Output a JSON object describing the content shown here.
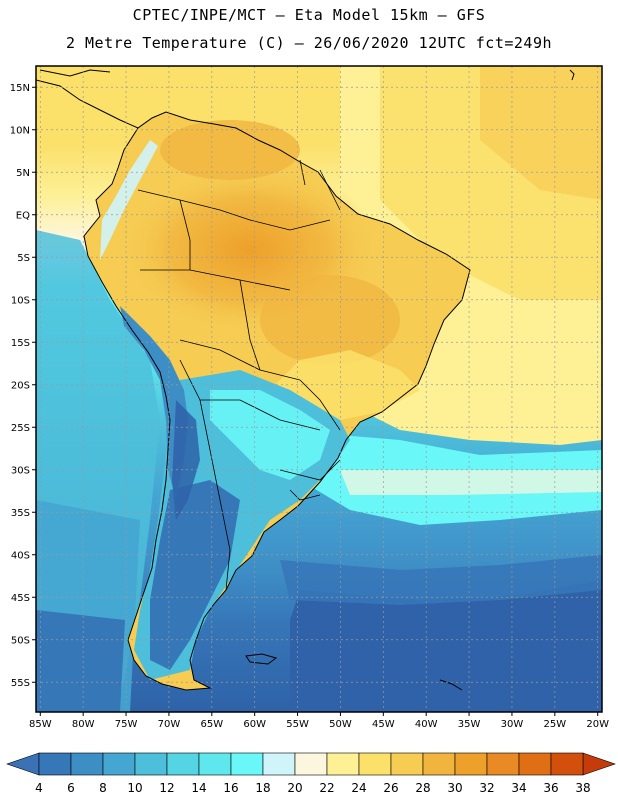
{
  "header": {
    "line1": "CPTEC/INPE/MCT –  Eta Model 15km – GFS",
    "line2": "2 Metre Temperature (C) – 26/06/2020 12UTC fct=249h"
  },
  "map": {
    "lon_range": [
      -85.5,
      -19.5
    ],
    "lat_range": [
      -58.5,
      17.5
    ],
    "lat_labels": [
      {
        "lat": 15,
        "label": "15N"
      },
      {
        "lat": 10,
        "label": "10N"
      },
      {
        "lat": 5,
        "label": "5N"
      },
      {
        "lat": 0,
        "label": "EQ"
      },
      {
        "lat": -5,
        "label": "5S"
      },
      {
        "lat": -10,
        "label": "10S"
      },
      {
        "lat": -15,
        "label": "15S"
      },
      {
        "lat": -20,
        "label": "20S"
      },
      {
        "lat": -25,
        "label": "25S"
      },
      {
        "lat": -30,
        "label": "30S"
      },
      {
        "lat": -35,
        "label": "35S"
      },
      {
        "lat": -40,
        "label": "40S"
      },
      {
        "lat": -45,
        "label": "45S"
      },
      {
        "lat": -50,
        "label": "50S"
      },
      {
        "lat": -55,
        "label": "55S"
      }
    ],
    "lon_labels": [
      {
        "lon": -85,
        "label": "85W"
      },
      {
        "lon": -80,
        "label": "80W"
      },
      {
        "lon": -75,
        "label": "75W"
      },
      {
        "lon": -70,
        "label": "70W"
      },
      {
        "lon": -65,
        "label": "65W"
      },
      {
        "lon": -60,
        "label": "60W"
      },
      {
        "lon": -55,
        "label": "55W"
      },
      {
        "lon": -50,
        "label": "50W"
      },
      {
        "lon": -45,
        "label": "45W"
      },
      {
        "lon": -40,
        "label": "40W"
      },
      {
        "lon": -35,
        "label": "35W"
      },
      {
        "lon": -30,
        "label": "30W"
      },
      {
        "lon": -25,
        "label": "25W"
      },
      {
        "lon": -20,
        "label": "20W"
      }
    ],
    "gridline_color": "#9a9a9a",
    "coast_color": "#000000"
  },
  "colorbar": {
    "labels": [
      "4",
      "6",
      "8",
      "10",
      "12",
      "14",
      "16",
      "18",
      "20",
      "22",
      "24",
      "26",
      "28",
      "30",
      "32",
      "34",
      "36",
      "38"
    ],
    "low_end_color": "#3a72b5",
    "high_end_color": "#c53c0a",
    "colors": [
      "#2f62a8",
      "#3677b8",
      "#3e8ec6",
      "#45a6d2",
      "#4dbfdb",
      "#55d4e4",
      "#5ee8ee",
      "#69f7f7",
      "#cff5fb",
      "#fdf6de",
      "#fdf095",
      "#fbe06a",
      "#f6cc52",
      "#f1b53e",
      "#eda02a",
      "#e98a25",
      "#e06e14",
      "#d2500c",
      "#c53c0a"
    ]
  }
}
